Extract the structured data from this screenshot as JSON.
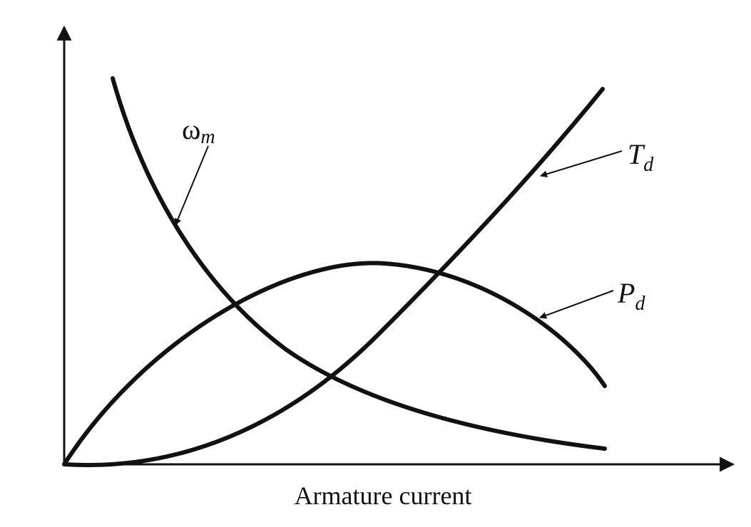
{
  "x_axis": {
    "label": "Armature current"
  },
  "curves": [
    {
      "symbol": "ω",
      "subscript": "m"
    },
    {
      "symbol": "T",
      "subscript": "d"
    },
    {
      "symbol": "P",
      "subscript": "d"
    }
  ]
}
